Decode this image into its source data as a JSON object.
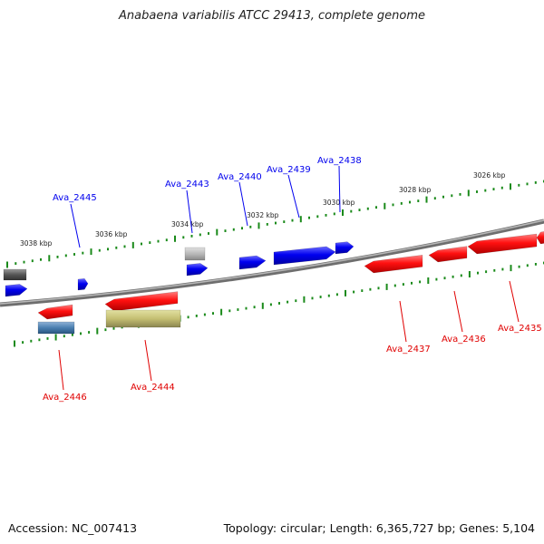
{
  "title": "Anabaena variabilis ATCC 29413, complete genome",
  "footer": {
    "accession": "Accession: NC_007413",
    "summary": "Topology: circular; Length: 6,365,727 bp; Genes: 5,104"
  },
  "colors": {
    "forward": "#0000ee",
    "reverse": "#e00000",
    "backbone": "#888888",
    "ticks": "#1a8a1a"
  },
  "scale_labels": [
    "3038 kbp",
    "3036 kbp",
    "3034 kbp",
    "3032 kbp",
    "3030 kbp",
    "3028 kbp",
    "3026 kbp"
  ],
  "gene_labels": {
    "forward": [
      "Ava_2445",
      "Ava_2443",
      "Ava_2440",
      "Ava_2439",
      "Ava_2438"
    ],
    "reverse": [
      "Ava_2446",
      "Ava_2444",
      "Ava_2437",
      "Ava_2436",
      "Ava_2435"
    ]
  }
}
